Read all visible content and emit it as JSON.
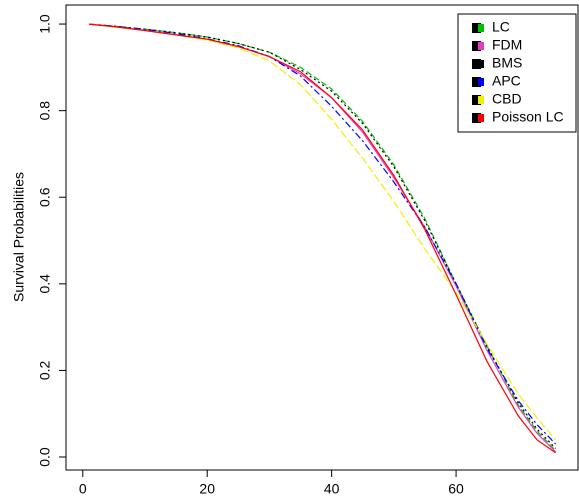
{
  "chart_data": {
    "type": "line",
    "y_label": "Survival Probabilities",
    "x": [
      1,
      5,
      10,
      15,
      20,
      25,
      30,
      35,
      40,
      45,
      50,
      55,
      60,
      65,
      70,
      73,
      76
    ],
    "xlim": [
      -2.7,
      79.6
    ],
    "xticks": [
      0,
      20,
      40,
      60
    ],
    "ylim": [
      -0.03,
      1.044
    ],
    "yticks": [
      {
        "value": 0,
        "label": "0.0"
      },
      0.2,
      0.4,
      0.6,
      0.8,
      {
        "value": 1,
        "label": "1.0"
      }
    ],
    "legend": "top-right",
    "series": [
      {
        "name": "LC",
        "color": "#00c000",
        "dash": "6,3",
        "values": [
          1.0,
          0.995,
          0.988,
          0.98,
          0.97,
          0.955,
          0.935,
          0.9,
          0.85,
          0.775,
          0.675,
          0.55,
          0.4,
          0.255,
          0.12,
          0.06,
          0.015
        ]
      },
      {
        "name": "FDM",
        "color": "#e040c0",
        "dash": "",
        "values": [
          1.0,
          0.994,
          0.985,
          0.975,
          0.965,
          0.948,
          0.925,
          0.885,
          0.83,
          0.75,
          0.645,
          0.53,
          0.395,
          0.245,
          0.115,
          0.055,
          0.012
        ]
      },
      {
        "name": "BMS",
        "color": "#000000",
        "dash": "2,3",
        "values": [
          1.0,
          0.995,
          0.988,
          0.98,
          0.97,
          0.955,
          0.935,
          0.895,
          0.845,
          0.77,
          0.67,
          0.545,
          0.4,
          0.255,
          0.125,
          0.065,
          0.02
        ]
      },
      {
        "name": "APC",
        "color": "#0000ff",
        "dash": "7,3,2,3",
        "values": [
          1.0,
          0.995,
          0.988,
          0.978,
          0.966,
          0.95,
          0.925,
          0.88,
          0.81,
          0.73,
          0.635,
          0.53,
          0.4,
          0.25,
          0.13,
          0.075,
          0.03
        ]
      },
      {
        "name": "CBD",
        "color": "#f0f000",
        "dash": "8,3",
        "values": [
          1.0,
          0.993,
          0.985,
          0.975,
          0.963,
          0.945,
          0.915,
          0.86,
          0.78,
          0.69,
          0.59,
          0.48,
          0.38,
          0.26,
          0.145,
          0.09,
          0.04
        ]
      },
      {
        "name": "Poisson LC",
        "color": "#ff0000",
        "dash": "",
        "values": [
          1.0,
          0.994,
          0.985,
          0.975,
          0.965,
          0.948,
          0.925,
          0.89,
          0.83,
          0.755,
          0.65,
          0.525,
          0.375,
          0.22,
          0.095,
          0.04,
          0.01
        ]
      }
    ]
  }
}
